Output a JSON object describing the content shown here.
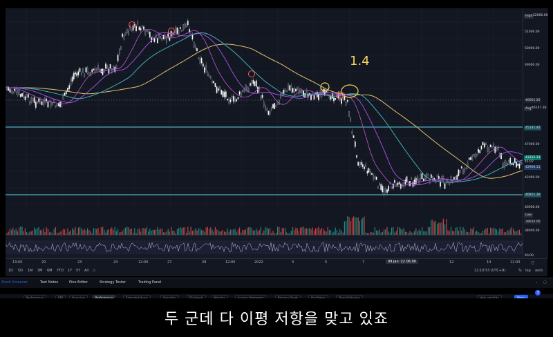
{
  "subtitle": "두 군데 다 이평 저항을 맞고 있죠",
  "annotation_text": "1.4",
  "price_axis": {
    "high_label": "High",
    "high_value": "52000.00",
    "labels": [
      "51000.00",
      "50000.00",
      "49000.00",
      "47000.00",
      "44000.00",
      "42000.00",
      "40000.00",
      "39000.00",
      "38000.00"
    ],
    "current_price": "46601.26",
    "avg_label": "Avg",
    "avg_price": "46147.36",
    "line1_price": "45145.40",
    "bid_price": "43212.33",
    "bid_sub": "41:07",
    "ask_price": "42906.11",
    "line2_price": "40911.30",
    "low_label": "Low",
    "low_value": "39650.00",
    "rsi_value": "40.00"
  },
  "time_axis": {
    "ticks": [
      "13:00",
      "20",
      "23",
      "24",
      "12:00",
      "27",
      "29",
      "12:00",
      "2022",
      "3",
      "5",
      "7",
      "09 Jan '22  06:00",
      "12",
      "14",
      "12:00"
    ],
    "utc": "12:10:53 (UTC+9)",
    "pct": "%",
    "log": "log",
    "auto": "auto"
  },
  "range_buttons": [
    "1D",
    "5D",
    "1M",
    "3M",
    "6M",
    "YTD",
    "1Y",
    "5Y",
    "All"
  ],
  "panel_tabs": [
    "Stock Screener",
    "Text Notes",
    "Pine Editor",
    "Strategy Tester",
    "Trading Panel"
  ],
  "bottom_toolbar": [
    "Performance",
    "EPS",
    "Overview",
    "Performance",
    "Extended Hours",
    "Valuation",
    "Dividends",
    "Margins",
    "Income Statement",
    "Balance Sheet",
    "Oscillators",
    "Trend-Following"
  ],
  "bottom_right": [
    "High volatility",
    "Filters"
  ],
  "notification_count": "3",
  "colors": {
    "background": "#131722",
    "candle_up": "#d1d4dc",
    "candle_down": "#d1d4dc",
    "ma_yellow": "#e0c46c",
    "ma_teal": "#3fb2b8",
    "ma_purple": "#9c4fe0",
    "ma_magenta": "#c05ad3",
    "hline": "#5fd3e6",
    "annot_red": "#ff5c5c",
    "annot_yellow": "#f6d45a"
  }
}
